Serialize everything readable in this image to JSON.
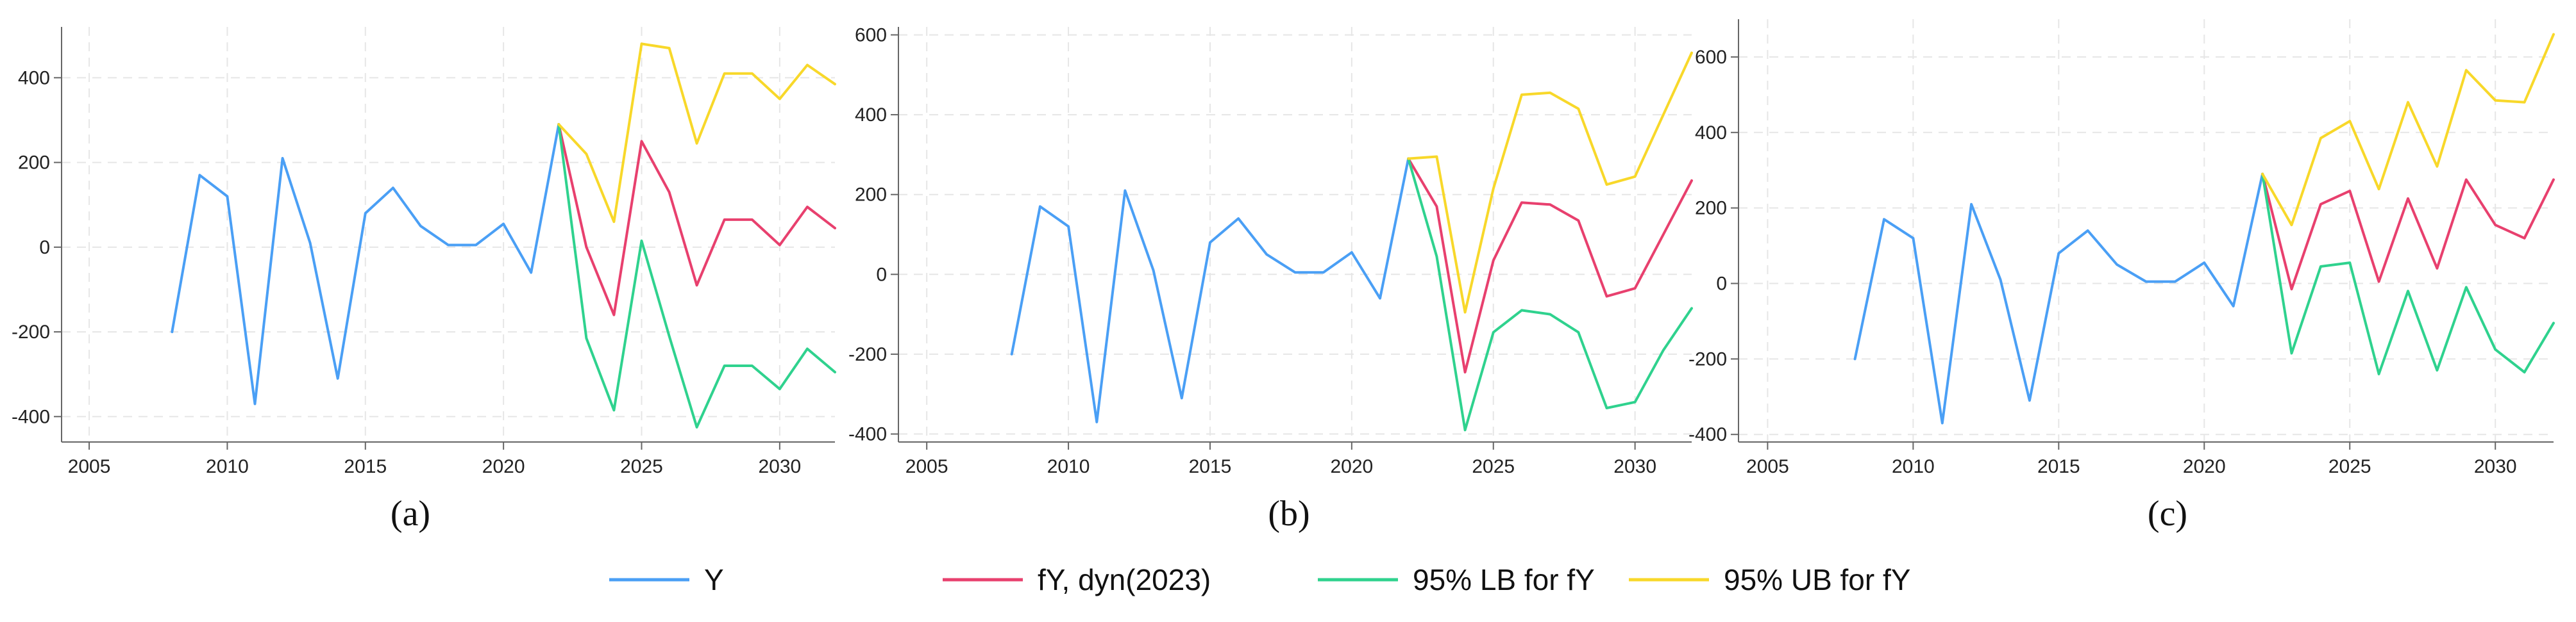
{
  "colors": {
    "Y": "#4a9ff5",
    "fY": "#e8406e",
    "LB": "#2fd28e",
    "UB": "#f8d82a",
    "grid": "#e6e6e6",
    "axis": "#666666"
  },
  "legend": [
    {
      "key": "Y",
      "label": "Y"
    },
    {
      "key": "fY",
      "label": "fY, dyn(2023)"
    },
    {
      "key": "LB",
      "label": "95% LB for fY"
    },
    {
      "key": "UB",
      "label": "95% UB for fY"
    }
  ],
  "chart_data": [
    {
      "panel_label": "(a)",
      "type": "line",
      "xlim": [
        2004,
        2032
      ],
      "ylim": [
        -460,
        520
      ],
      "xticks": [
        2005,
        2010,
        2015,
        2020,
        2025,
        2030
      ],
      "yticks": [
        -400,
        -200,
        0,
        200,
        400
      ],
      "grid": true,
      "series": [
        {
          "name": "Y",
          "key": "Y",
          "x": [
            2008,
            2009,
            2010,
            2011,
            2012,
            2013,
            2014,
            2015,
            2016,
            2017,
            2018,
            2019,
            2020,
            2021,
            2022
          ],
          "y": [
            -200,
            170,
            120,
            -370,
            210,
            10,
            -310,
            80,
            140,
            50,
            5,
            5,
            55,
            -60,
            290
          ]
        },
        {
          "name": "fY, dyn(2023)",
          "key": "fY",
          "x": [
            2022,
            2023,
            2024,
            2025,
            2026,
            2027,
            2028,
            2029,
            2030,
            2031,
            2032
          ],
          "y": [
            290,
            0,
            -160,
            250,
            130,
            -90,
            65,
            65,
            5,
            95,
            45
          ]
        },
        {
          "name": "95% LB for fY",
          "key": "LB",
          "x": [
            2022,
            2023,
            2024,
            2025,
            2026,
            2027,
            2028,
            2029,
            2030,
            2031,
            2032
          ],
          "y": [
            290,
            -215,
            -385,
            15,
            -210,
            -425,
            -280,
            -280,
            -335,
            -240,
            -295
          ]
        },
        {
          "name": "95% UB for fY",
          "key": "UB",
          "x": [
            2022,
            2023,
            2024,
            2025,
            2026,
            2027,
            2028,
            2029,
            2030,
            2031,
            2032
          ],
          "y": [
            290,
            220,
            60,
            480,
            470,
            245,
            410,
            410,
            350,
            430,
            385
          ]
        }
      ]
    },
    {
      "panel_label": "(b)",
      "type": "line",
      "xlim": [
        2004,
        2032
      ],
      "ylim": [
        -420,
        620
      ],
      "xticks": [
        2005,
        2010,
        2015,
        2020,
        2025,
        2030
      ],
      "yticks": [
        -400,
        -200,
        0,
        200,
        400,
        600
      ],
      "grid": true,
      "series": [
        {
          "name": "Y",
          "key": "Y",
          "x": [
            2008,
            2009,
            2010,
            2011,
            2012,
            2013,
            2014,
            2015,
            2016,
            2017,
            2018,
            2019,
            2020,
            2021,
            2022
          ],
          "y": [
            -200,
            170,
            120,
            -370,
            210,
            10,
            -310,
            80,
            140,
            50,
            5,
            5,
            55,
            -60,
            290
          ]
        },
        {
          "name": "fY, dyn(2023)",
          "key": "fY",
          "x": [
            2022,
            2023,
            2024,
            2025,
            2026,
            2027,
            2028,
            2029,
            2030,
            2031,
            2032
          ],
          "y": [
            290,
            170,
            -245,
            35,
            180,
            175,
            135,
            -55,
            -35,
            100,
            235
          ]
        },
        {
          "name": "95% LB for fY",
          "key": "LB",
          "x": [
            2022,
            2023,
            2024,
            2025,
            2026,
            2027,
            2028,
            2029,
            2030,
            2031,
            2032
          ],
          "y": [
            290,
            45,
            -390,
            -145,
            -90,
            -100,
            -145,
            -335,
            -320,
            -190,
            -85
          ]
        },
        {
          "name": "95% UB for fY",
          "key": "UB",
          "x": [
            2022,
            2023,
            2024,
            2025,
            2026,
            2027,
            2028,
            2029,
            2030,
            2031,
            2032
          ],
          "y": [
            290,
            295,
            -95,
            215,
            450,
            455,
            415,
            225,
            245,
            400,
            555
          ]
        }
      ]
    },
    {
      "panel_label": "(c)",
      "type": "line",
      "xlim": [
        2004,
        2032
      ],
      "ylim": [
        -420,
        700
      ],
      "xticks": [
        2005,
        2010,
        2015,
        2020,
        2025,
        2030
      ],
      "yticks": [
        -400,
        -200,
        0,
        200,
        400,
        600
      ],
      "grid": true,
      "series": [
        {
          "name": "Y",
          "key": "Y",
          "x": [
            2008,
            2009,
            2010,
            2011,
            2012,
            2013,
            2014,
            2015,
            2016,
            2017,
            2018,
            2019,
            2020,
            2021,
            2022
          ],
          "y": [
            -200,
            170,
            120,
            -370,
            210,
            10,
            -310,
            80,
            140,
            50,
            5,
            5,
            55,
            -60,
            290
          ]
        },
        {
          "name": "fY, dyn(2023)",
          "key": "fY",
          "x": [
            2022,
            2023,
            2024,
            2025,
            2026,
            2027,
            2028,
            2029,
            2030,
            2031,
            2032
          ],
          "y": [
            290,
            -15,
            210,
            245,
            5,
            225,
            40,
            275,
            155,
            120,
            275
          ]
        },
        {
          "name": "95% LB for fY",
          "key": "LB",
          "x": [
            2022,
            2023,
            2024,
            2025,
            2026,
            2027,
            2028,
            2029,
            2030,
            2031,
            2032
          ],
          "y": [
            290,
            -185,
            45,
            55,
            -240,
            -20,
            -230,
            -10,
            -175,
            -235,
            -105
          ]
        },
        {
          "name": "95% UB for fY",
          "key": "UB",
          "x": [
            2022,
            2023,
            2024,
            2025,
            2026,
            2027,
            2028,
            2029,
            2030,
            2031,
            2032
          ],
          "y": [
            290,
            155,
            385,
            430,
            250,
            480,
            310,
            565,
            485,
            480,
            660
          ]
        }
      ]
    }
  ]
}
